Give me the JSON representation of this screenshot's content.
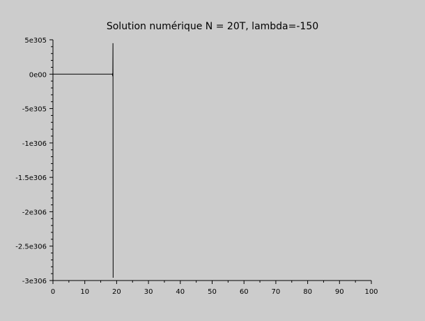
{
  "chart_data": {
    "type": "line",
    "title": "Solution numérique N = 20T, lambda=-150",
    "xlabel": "",
    "ylabel": "",
    "xlim": [
      0,
      100
    ],
    "ylim": [
      -3e+306,
      5e+305
    ],
    "grid": false,
    "x_ticks": [
      0,
      10,
      20,
      30,
      40,
      50,
      60,
      70,
      80,
      90,
      100
    ],
    "x_tick_labels": [
      "0",
      "10",
      "20",
      "30",
      "40",
      "50",
      "60",
      "70",
      "80",
      "90",
      "100"
    ],
    "y_ticks": [
      5e+305,
      0,
      -5e+305,
      -1e+306,
      -1.5e+306,
      -2e+306,
      -2.5e+306,
      -3e+306
    ],
    "y_tick_labels": [
      "5e305",
      "0e00",
      "-5e305",
      "-1e306",
      "-1.5e306",
      "-2e306",
      "-2.5e306",
      "-3e306"
    ],
    "series": [
      {
        "color": "#000000",
        "x": [
          0,
          18.5,
          18.6,
          18.7,
          18.75,
          18.8,
          18.85,
          18.9
        ],
        "y": [
          0,
          0,
          -2e+303,
          5e+303,
          -3e+304,
          2e+304,
          4.5e+305,
          -2.96e+306
        ]
      }
    ]
  }
}
